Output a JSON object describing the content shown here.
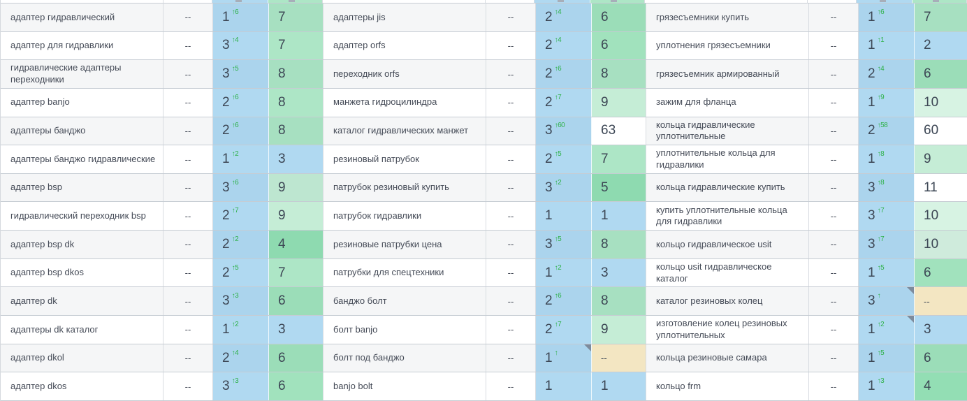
{
  "colors": {
    "position_cell_blue": "#b0d9f1",
    "value_green_dark": "#93deb4",
    "value_green_6": "#a0e2bd",
    "value_green_7_8": "#a9e5c2",
    "value_green_9": "#c3edd5",
    "value_green_10": "#d4f2e1",
    "value_over_top10_white": "#ffffff",
    "value_missing_beige": "#f3e6c2",
    "delta_green": "#2fb14a",
    "note_corner_gray": "#7d8b9c",
    "row_stripe": "#f5f6f7",
    "grid_border": "#c6ccd3"
  },
  "table": {
    "groups": [
      {
        "rows": [
          {
            "keyword": "адаптер гидравлический",
            "dash": "--",
            "position": "1",
            "delta": "↑6",
            "value": "7",
            "note": false
          },
          {
            "keyword": "адаптер для гидравлики",
            "dash": "--",
            "position": "3",
            "delta": "↑4",
            "value": "7",
            "note": false
          },
          {
            "keyword": "гидравлические адаптеры переходники",
            "dash": "--",
            "position": "3",
            "delta": "↑5",
            "value": "8",
            "note": false
          },
          {
            "keyword": "адаптер banjo",
            "dash": "--",
            "position": "2",
            "delta": "↑6",
            "value": "8",
            "note": false
          },
          {
            "keyword": "адаптеры банджо",
            "dash": "--",
            "position": "2",
            "delta": "↑6",
            "value": "8",
            "note": false
          },
          {
            "keyword": "адаптеры банджо гидравлические",
            "dash": "--",
            "position": "1",
            "delta": "↑2",
            "value": "3",
            "note": false
          },
          {
            "keyword": "адаптер bsp",
            "dash": "--",
            "position": "3",
            "delta": "↑6",
            "value": "9",
            "note": false
          },
          {
            "keyword": "гидравлический переходник bsp",
            "dash": "--",
            "position": "2",
            "delta": "↑7",
            "value": "9",
            "note": false
          },
          {
            "keyword": "адаптер bsp dk",
            "dash": "--",
            "position": "2",
            "delta": "↑2",
            "value": "4",
            "note": false
          },
          {
            "keyword": "адаптер bsp dkos",
            "dash": "--",
            "position": "2",
            "delta": "↑5",
            "value": "7",
            "note": false
          },
          {
            "keyword": "адаптер dk",
            "dash": "--",
            "position": "3",
            "delta": "↑3",
            "value": "6",
            "note": false
          },
          {
            "keyword": "адаптеры dk каталог",
            "dash": "--",
            "position": "1",
            "delta": "↑2",
            "value": "3",
            "note": false
          },
          {
            "keyword": "адаптер dkol",
            "dash": "--",
            "position": "2",
            "delta": "↑4",
            "value": "6",
            "note": false
          },
          {
            "keyword": "адаптер dkos",
            "dash": "--",
            "position": "3",
            "delta": "↑3",
            "value": "6",
            "note": false
          }
        ]
      },
      {
        "rows": [
          {
            "keyword": "адаптеры jis",
            "dash": "--",
            "position": "2",
            "delta": "↑4",
            "value": "6",
            "note": false
          },
          {
            "keyword": "адаптер orfs",
            "dash": "--",
            "position": "2",
            "delta": "↑4",
            "value": "6",
            "note": false
          },
          {
            "keyword": "переходник orfs",
            "dash": "--",
            "position": "2",
            "delta": "↑6",
            "value": "8",
            "note": false
          },
          {
            "keyword": "манжета гидроцилиндра",
            "dash": "--",
            "position": "2",
            "delta": "↑7",
            "value": "9",
            "note": false
          },
          {
            "keyword": "каталог гидравлических манжет",
            "dash": "--",
            "position": "3",
            "delta": "↑60",
            "value": "63",
            "note": false
          },
          {
            "keyword": "резиновый патрубок",
            "dash": "--",
            "position": "2",
            "delta": "↑5",
            "value": "7",
            "note": false
          },
          {
            "keyword": "патрубок резиновый купить",
            "dash": "--",
            "position": "3",
            "delta": "↑2",
            "value": "5",
            "note": false
          },
          {
            "keyword": "патрубок гидравлики",
            "dash": "--",
            "position": "1",
            "delta": "",
            "value": "1",
            "note": false
          },
          {
            "keyword": "резиновые патрубки цена",
            "dash": "--",
            "position": "3",
            "delta": "↑5",
            "value": "8",
            "note": false
          },
          {
            "keyword": "патрубки для спецтехники",
            "dash": "--",
            "position": "1",
            "delta": "↑2",
            "value": "3",
            "note": false
          },
          {
            "keyword": "банджо болт",
            "dash": "--",
            "position": "2",
            "delta": "↑6",
            "value": "8",
            "note": false
          },
          {
            "keyword": "болт banjo",
            "dash": "--",
            "position": "2",
            "delta": "↑7",
            "value": "9",
            "note": false
          },
          {
            "keyword": "болт под банджо",
            "dash": "--",
            "position": "1",
            "delta": "↑",
            "value": "--",
            "note": true
          },
          {
            "keyword": "banjo bolt",
            "dash": "--",
            "position": "1",
            "delta": "",
            "value": "1",
            "note": false
          }
        ]
      },
      {
        "rows": [
          {
            "keyword": "грязесъемники купить",
            "dash": "--",
            "position": "1",
            "delta": "↑6",
            "value": "7",
            "note": false
          },
          {
            "keyword": "уплотнения грязесъемники",
            "dash": "--",
            "position": "1",
            "delta": "↑1",
            "value": "2",
            "note": false
          },
          {
            "keyword": "грязесъемник армированный",
            "dash": "--",
            "position": "2",
            "delta": "↑4",
            "value": "6",
            "note": false
          },
          {
            "keyword": "зажим для фланца",
            "dash": "--",
            "position": "1",
            "delta": "↑9",
            "value": "10",
            "note": false
          },
          {
            "keyword": "кольца гидравлические уплотнительные",
            "dash": "--",
            "position": "2",
            "delta": "↑58",
            "value": "60",
            "note": false
          },
          {
            "keyword": "уплотнительные кольца для гидравлики",
            "dash": "--",
            "position": "1",
            "delta": "↑8",
            "value": "9",
            "note": false
          },
          {
            "keyword": "кольца гидравлические купить",
            "dash": "--",
            "position": "3",
            "delta": "↑8",
            "value": "11",
            "note": false
          },
          {
            "keyword": "купить уплотнительные кольца для гидравлики",
            "dash": "--",
            "position": "3",
            "delta": "↑7",
            "value": "10",
            "note": false
          },
          {
            "keyword": "кольцо гидравлическое usit",
            "dash": "--",
            "position": "3",
            "delta": "↑7",
            "value": "10",
            "note": false
          },
          {
            "keyword": "кольцо usit гидравлическое каталог",
            "dash": "--",
            "position": "1",
            "delta": "↑5",
            "value": "6",
            "note": false
          },
          {
            "keyword": "каталог резиновых колец",
            "dash": "--",
            "position": "3",
            "delta": "↑",
            "value": "--",
            "note": true
          },
          {
            "keyword": "изготовление колец резиновых уплотнительных",
            "dash": "--",
            "position": "1",
            "delta": "↑2",
            "value": "3",
            "note": true
          },
          {
            "keyword": "кольца резиновые самара",
            "dash": "--",
            "position": "1",
            "delta": "↑5",
            "value": "6",
            "note": false
          },
          {
            "keyword": "кольцо frm",
            "dash": "--",
            "position": "1",
            "delta": "↑3",
            "value": "4",
            "note": false
          }
        ]
      }
    ]
  }
}
